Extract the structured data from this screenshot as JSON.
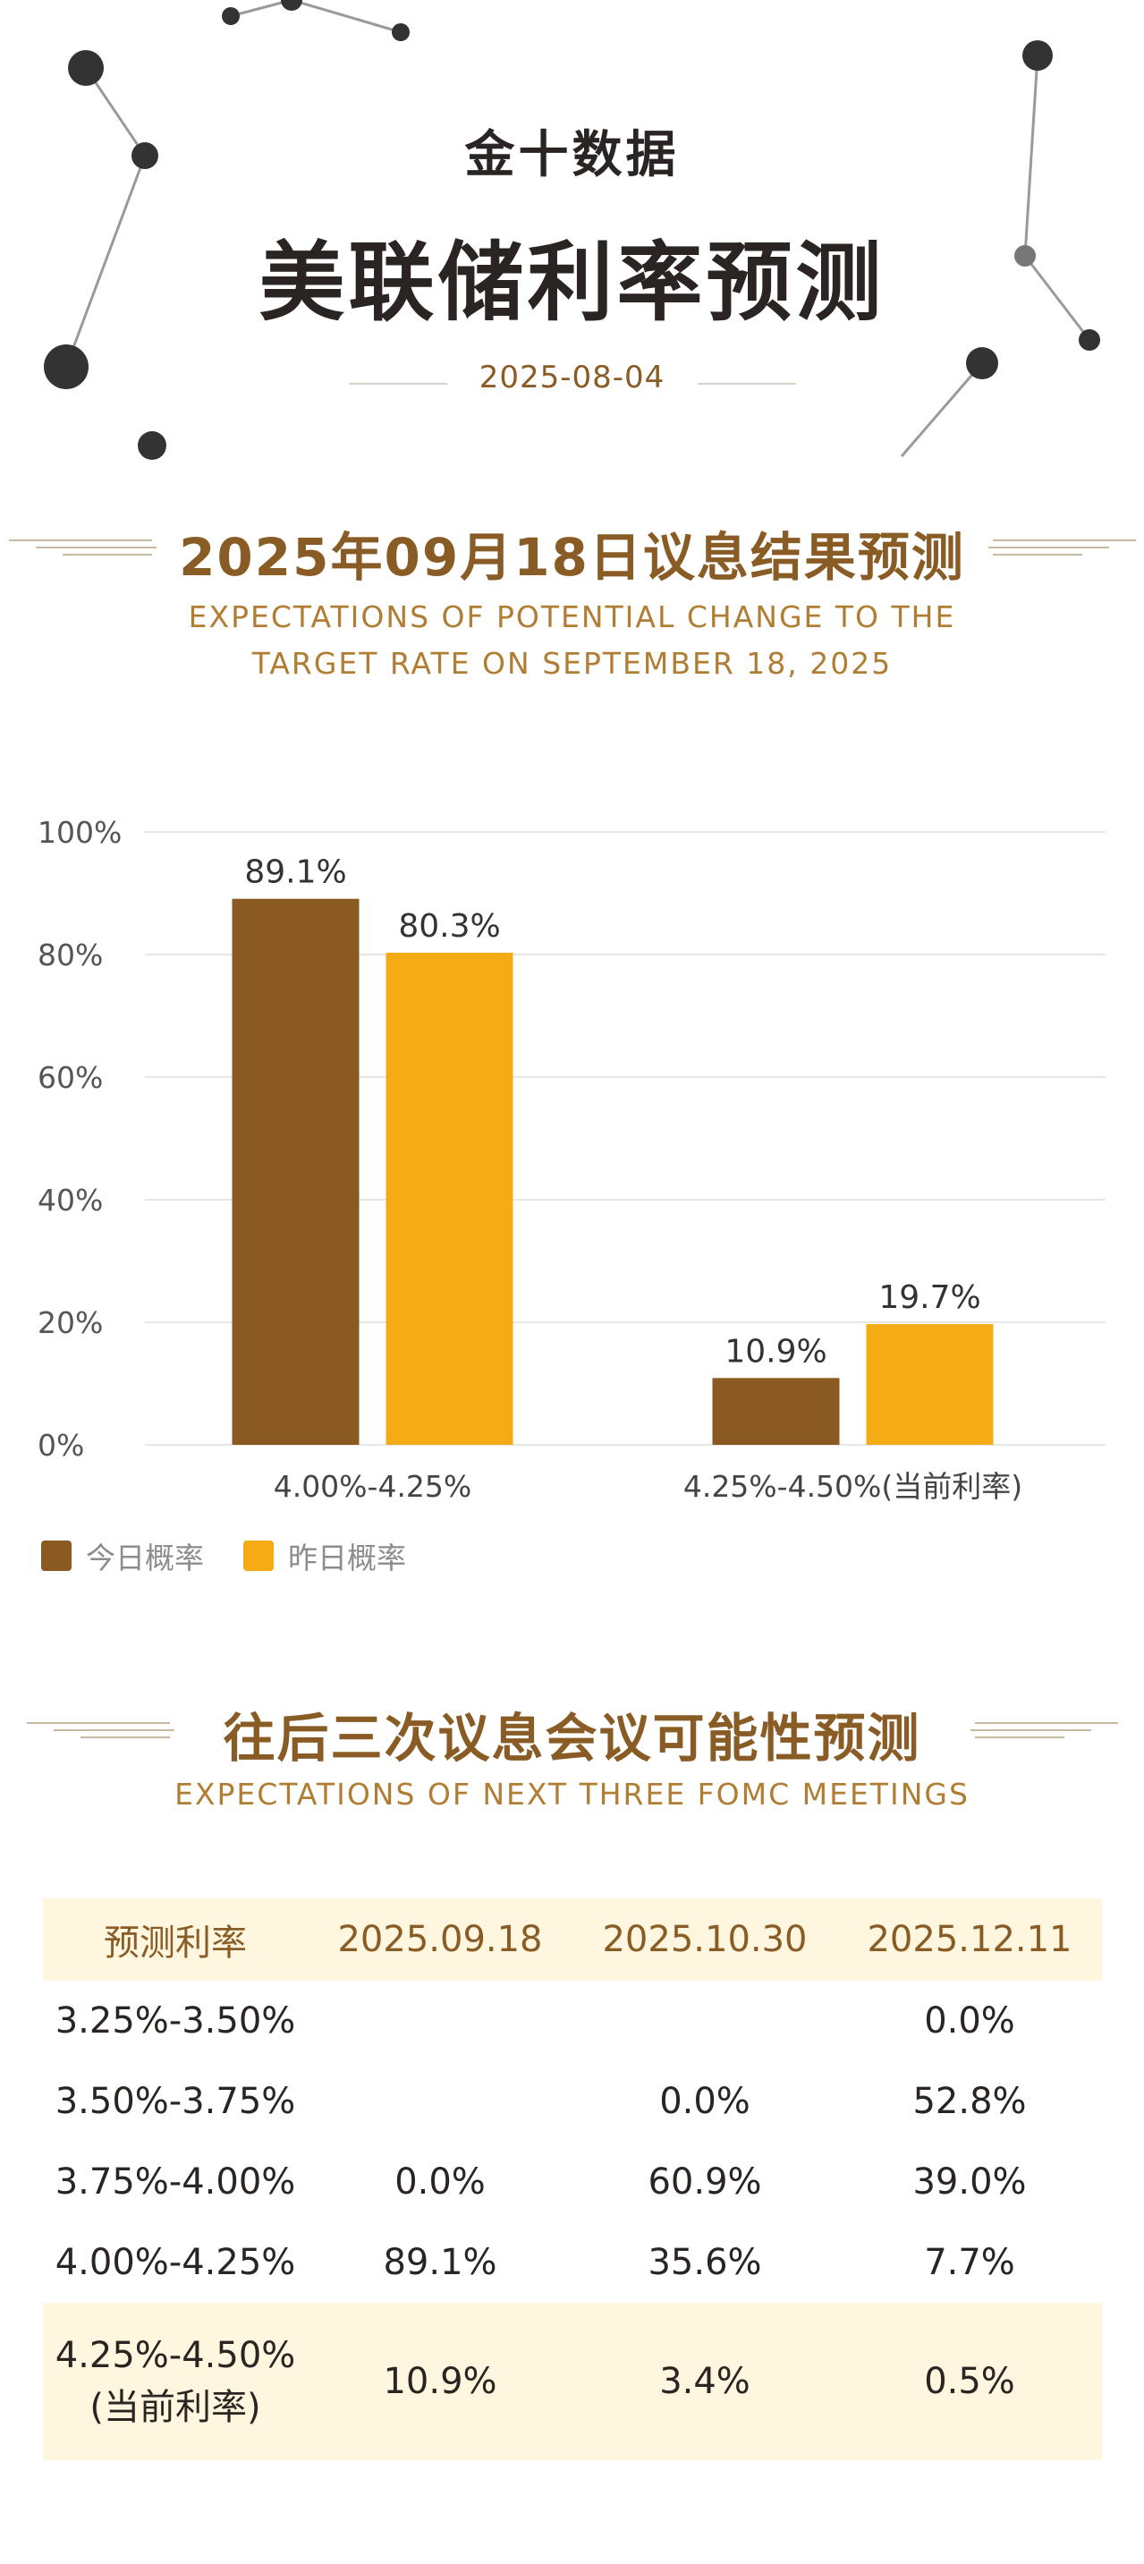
{
  "header": {
    "brand": "金十数据",
    "title": "美联储利率预测",
    "date": "2025-08-04"
  },
  "section1": {
    "title": "2025年09月18日议息结果预测",
    "subtitle_line1": "EXPECTATIONS OF POTENTIAL CHANGE TO THE",
    "subtitle_line2": "TARGET RATE ON SEPTEMBER 18, 2025"
  },
  "chart_data": {
    "type": "bar",
    "categories": [
      "4.00%-4.25%",
      "4.25%-4.50%(当前利率)"
    ],
    "series": [
      {
        "name": "今日概率",
        "values": [
          89.1,
          10.9
        ],
        "color": "#8b5a22"
      },
      {
        "name": "昨日概率",
        "values": [
          80.3,
          19.7
        ],
        "color": "#f5ac14"
      }
    ],
    "value_labels": [
      [
        "89.1%",
        "10.9%"
      ],
      [
        "80.3%",
        "19.7%"
      ]
    ],
    "ylim": [
      0,
      100
    ],
    "yticks": [
      0,
      20,
      40,
      60,
      80,
      100
    ],
    "ytick_labels": [
      "0%",
      "20%",
      "40%",
      "60%",
      "80%",
      "100%"
    ],
    "grid": true,
    "legend_position": "bottom-left"
  },
  "legend": [
    "今日概率",
    "昨日概率"
  ],
  "section2": {
    "title": "往后三次议息会议可能性预测",
    "subtitle": "EXPECTATIONS OF NEXT THREE FOMC MEETINGS"
  },
  "table": {
    "headers": [
      "预测利率",
      "2025.09.18",
      "2025.10.30",
      "2025.12.11"
    ],
    "rows": [
      [
        "3.25%-3.50%",
        "",
        "",
        "0.0%"
      ],
      [
        "3.50%-3.75%",
        "",
        "0.0%",
        "52.8%"
      ],
      [
        "3.75%-4.00%",
        "0.0%",
        "60.9%",
        "39.0%"
      ],
      [
        "4.00%-4.25%",
        "89.1%",
        "35.6%",
        "7.7%"
      ]
    ],
    "current_row": {
      "rate": "4.25%-4.50%",
      "note": "(当前利率)",
      "values": [
        "10.9%",
        "3.4%",
        "0.5%"
      ]
    }
  },
  "colors": {
    "brown": "#8b5a22",
    "gold": "#f5ac14",
    "title_brown": "#8a5c25",
    "highlight": "#fff6df"
  }
}
